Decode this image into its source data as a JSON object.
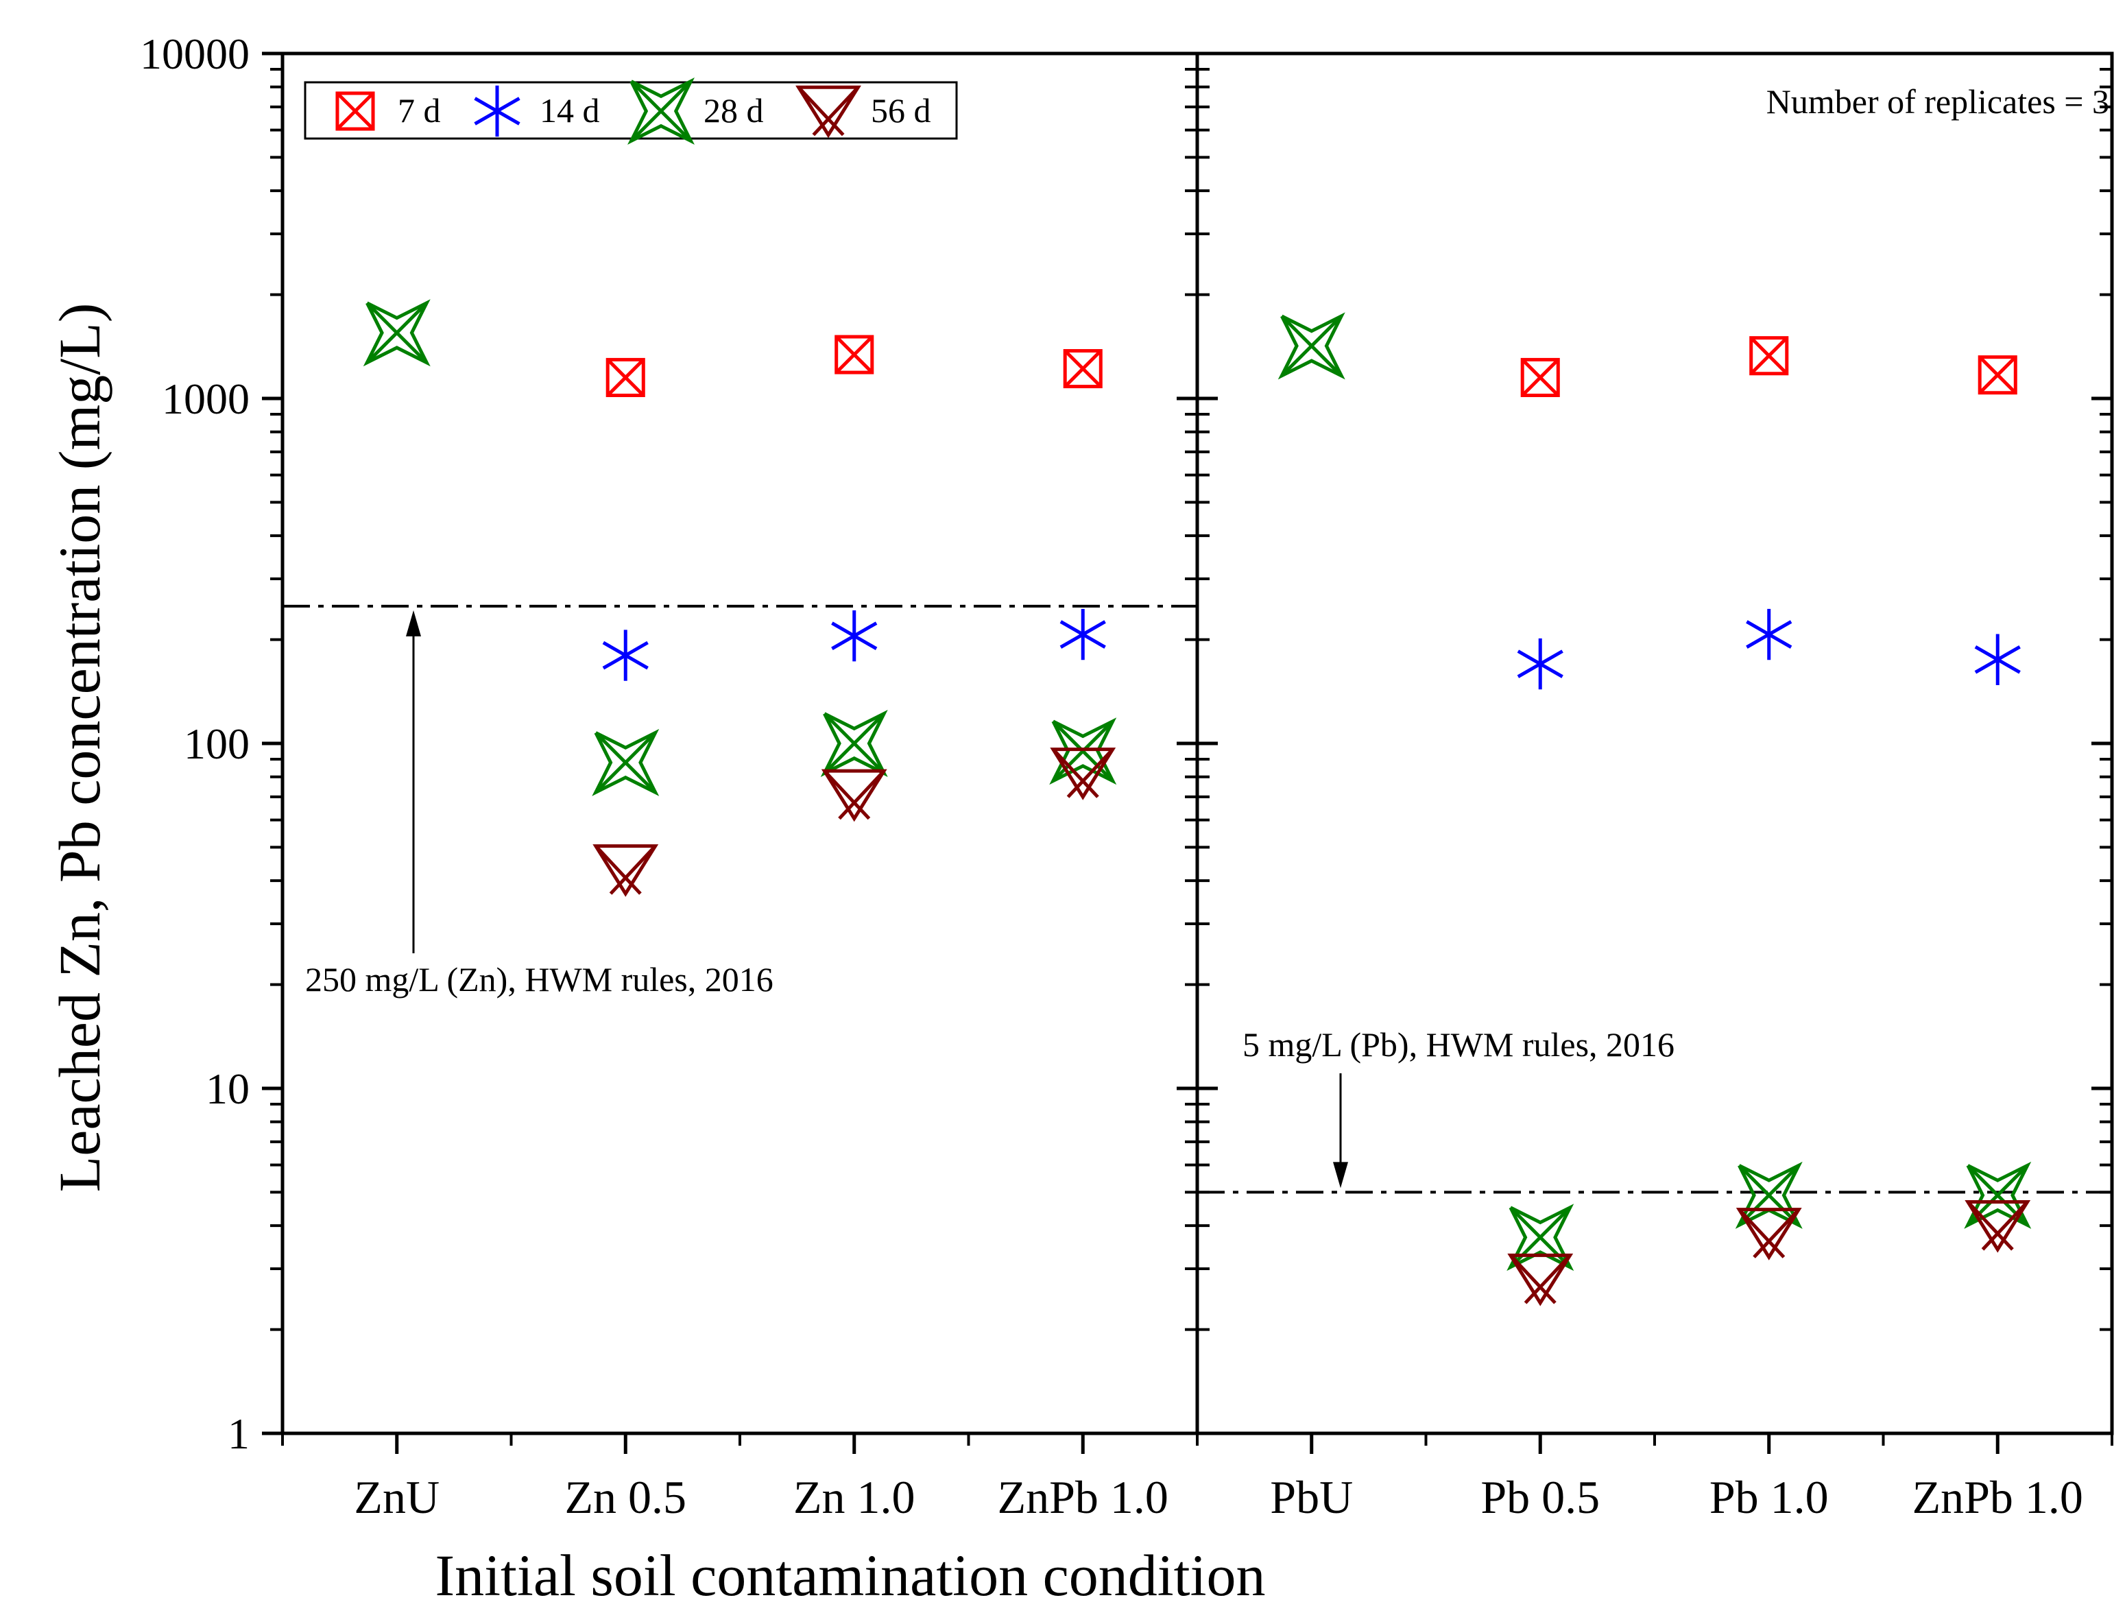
{
  "chart_data": {
    "type": "scatter",
    "ylabel": "Leached Zn, Pb concentration (mg/L)",
    "xlabel": "Initial soil contamination condition",
    "yscale": "log",
    "ylim": [
      1,
      10000
    ],
    "yticks": [
      "1",
      "10",
      "100",
      "1000",
      "10000"
    ],
    "categories": [
      "ZnU",
      "Zn 0.5",
      "Zn 1.0",
      "ZnPb 1.0",
      "PbU",
      "Pb 0.5",
      "Pb 1.0",
      "ZnPb 1.0"
    ],
    "panels": [
      {
        "name": "Zn",
        "category_indices": [
          0,
          1,
          2,
          3
        ]
      },
      {
        "name": "Pb",
        "category_indices": [
          4,
          5,
          6,
          7
        ]
      }
    ],
    "series": [
      {
        "name": "7 d",
        "marker": "square-x",
        "color": "#ff0000",
        "values": [
          null,
          1150,
          1340,
          1220,
          null,
          1150,
          1330,
          1170
        ]
      },
      {
        "name": "14 d",
        "marker": "asterisk",
        "color": "#0000ff",
        "values": [
          null,
          180,
          205,
          207,
          null,
          170,
          207,
          175
        ]
      },
      {
        "name": "28 d",
        "marker": "x-diamond",
        "color": "#008000",
        "values": [
          1550,
          88,
          100,
          95,
          1420,
          3.7,
          4.9,
          4.9
        ]
      },
      {
        "name": "56 d",
        "marker": "triangle-x",
        "color": "#800000",
        "values": [
          null,
          43,
          71,
          82,
          null,
          2.8,
          3.8,
          4.0
        ]
      }
    ],
    "reference_lines": [
      {
        "panel": 0,
        "value": 250,
        "label": "250 mg/L (Zn), HWM rules, 2016"
      },
      {
        "panel": 1,
        "value": 5,
        "label": "5 mg/L (Pb), HWM rules, 2016"
      }
    ],
    "annotation": "Number of replicates = 3",
    "legend": {
      "location": "top-left",
      "entries": [
        "7 d",
        "14 d",
        "28 d",
        "56 d"
      ]
    }
  }
}
